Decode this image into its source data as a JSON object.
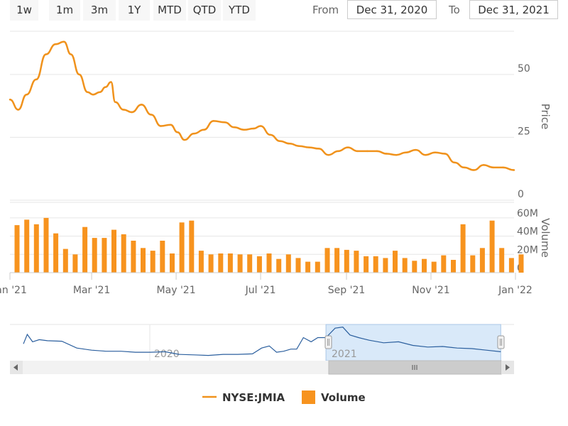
{
  "toolbar": {
    "buttons": [
      "1w",
      "1m",
      "3m",
      "1Y",
      "MTD",
      "QTD",
      "YTD"
    ],
    "from_label": "From",
    "from_value": "Dec 31, 2020",
    "to_label": "To",
    "to_value": "Dec 31, 2021"
  },
  "colors": {
    "price": "#f0921c",
    "volume": "#f7931e",
    "navigator": "#2b5f9e",
    "navigator_mask": "#cfe3f7"
  },
  "chart_data": [
    {
      "type": "line",
      "series": [
        {
          "name": "NYSE:JMIA",
          "x": [
            "2021-01-01",
            "2021-01-07",
            "2021-01-13",
            "2021-01-20",
            "2021-01-27",
            "2021-02-03",
            "2021-02-09",
            "2021-02-14",
            "2021-02-20",
            "2021-02-26",
            "2021-03-02",
            "2021-03-07",
            "2021-03-11",
            "2021-03-15",
            "2021-03-18",
            "2021-03-24",
            "2021-03-30",
            "2021-04-06",
            "2021-04-13",
            "2021-04-20",
            "2021-04-27",
            "2021-05-02",
            "2021-05-07",
            "2021-05-14",
            "2021-05-21",
            "2021-05-28",
            "2021-06-05",
            "2021-06-12",
            "2021-06-19",
            "2021-06-26",
            "2021-07-01",
            "2021-07-08",
            "2021-07-15",
            "2021-07-22",
            "2021-07-29",
            "2021-08-05",
            "2021-08-12",
            "2021-08-19",
            "2021-08-26",
            "2021-09-02",
            "2021-09-09",
            "2021-09-16",
            "2021-09-23",
            "2021-09-30",
            "2021-10-07",
            "2021-10-14",
            "2021-10-21",
            "2021-10-28",
            "2021-11-04",
            "2021-11-11",
            "2021-11-18",
            "2021-11-25",
            "2021-12-02",
            "2021-12-09",
            "2021-12-16",
            "2021-12-23",
            "2021-12-31"
          ],
          "values": [
            40,
            36,
            42,
            48,
            58,
            62,
            63,
            58,
            50,
            43,
            42,
            43,
            45,
            47,
            39,
            36,
            35,
            38,
            34,
            29.5,
            30,
            27,
            24,
            26.5,
            28,
            31.5,
            31,
            29,
            28,
            28.5,
            29.5,
            26,
            23.5,
            22.5,
            21.5,
            21,
            20.5,
            18,
            19.5,
            21,
            19.5,
            19.5,
            19.5,
            18.5,
            18,
            19,
            20,
            18,
            19,
            18.5,
            15,
            13,
            12,
            14,
            13,
            13,
            12
          ]
        }
      ],
      "ylabel": "Price",
      "yticks": [
        0,
        25,
        50
      ],
      "ylim": [
        0,
        70
      ],
      "xticks": [
        "Jan '21",
        "Mar '21",
        "May '21",
        "Jul '21",
        "Sep '21",
        "Nov '21",
        "Jan '22"
      ],
      "grid": true
    },
    {
      "type": "bar",
      "series": [
        {
          "name": "Volume",
          "x": [
            "2021-01-01",
            "2021-01-08",
            "2021-01-15",
            "2021-01-22",
            "2021-01-29",
            "2021-02-05",
            "2021-02-12",
            "2021-02-19",
            "2021-02-26",
            "2021-03-05",
            "2021-03-12",
            "2021-03-19",
            "2021-03-26",
            "2021-04-02",
            "2021-04-09",
            "2021-04-16",
            "2021-04-23",
            "2021-04-30",
            "2021-05-07",
            "2021-05-14",
            "2021-05-21",
            "2021-05-28",
            "2021-06-04",
            "2021-06-11",
            "2021-06-18",
            "2021-06-25",
            "2021-07-02",
            "2021-07-09",
            "2021-07-16",
            "2021-07-23",
            "2021-07-30",
            "2021-08-06",
            "2021-08-13",
            "2021-08-20",
            "2021-08-27",
            "2021-09-03",
            "2021-09-10",
            "2021-09-17",
            "2021-09-24",
            "2021-10-01",
            "2021-10-08",
            "2021-10-15",
            "2021-10-22",
            "2021-10-29",
            "2021-11-05",
            "2021-11-12",
            "2021-11-19",
            "2021-11-26",
            "2021-12-03",
            "2021-12-10",
            "2021-12-17",
            "2021-12-24",
            "2021-12-31"
          ],
          "values": [
            52,
            58,
            53,
            60,
            43,
            26,
            20,
            50,
            38,
            38,
            47,
            42,
            35,
            27,
            24,
            35,
            21,
            55,
            57,
            24,
            20,
            21,
            21,
            20,
            20,
            18,
            21,
            15,
            20,
            16,
            12,
            12,
            27,
            27,
            25,
            24,
            18,
            18,
            16,
            24,
            16,
            13,
            15,
            12,
            19,
            14,
            53,
            19,
            27,
            57,
            27,
            16,
            20
          ]
        }
      ],
      "ylabel": "Volume",
      "ytick_labels": [
        "0",
        "20M",
        "40M",
        "60M"
      ],
      "yticks": [
        0,
        20,
        40,
        60
      ],
      "ylim": [
        0,
        70
      ],
      "units": "millions"
    },
    {
      "type": "area",
      "role": "navigator",
      "labels": [
        "2020",
        "2021"
      ],
      "series": [
        {
          "x": [
            "2019-04-12",
            "2019-04-20",
            "2019-05-01",
            "2019-05-15",
            "2019-06-01",
            "2019-07-01",
            "2019-08-01",
            "2019-09-01",
            "2019-10-01",
            "2019-11-01",
            "2019-12-01",
            "2020-01-01",
            "2020-02-01",
            "2020-03-01",
            "2020-04-01",
            "2020-05-01",
            "2020-06-01",
            "2020-07-01",
            "2020-08-01",
            "2020-08-20",
            "2020-09-05",
            "2020-09-20",
            "2020-10-05",
            "2020-10-20",
            "2020-11-01",
            "2020-11-15",
            "2020-12-01",
            "2020-12-15",
            "2021-01-01",
            "2021-01-20",
            "2021-02-05",
            "2021-02-20",
            "2021-03-10",
            "2021-04-01",
            "2021-05-01",
            "2021-06-01",
            "2021-07-01",
            "2021-08-01",
            "2021-09-01",
            "2021-10-01",
            "2021-11-01",
            "2021-12-01",
            "2021-12-31"
          ],
          "values": [
            28,
            46,
            32,
            36,
            34,
            33,
            20,
            16,
            14,
            14,
            12,
            12,
            13,
            8,
            7,
            6,
            8,
            8,
            9,
            20,
            24,
            12,
            14,
            18,
            18,
            40,
            32,
            40,
            40,
            58,
            60,
            45,
            40,
            35,
            30,
            32,
            25,
            22,
            23,
            20,
            19,
            16,
            13
          ]
        }
      ],
      "selected_range": [
        "2021-01-01",
        "2021-12-31"
      ]
    }
  ],
  "legend": {
    "price_label": "NYSE:JMIA",
    "volume_label": "Volume"
  }
}
